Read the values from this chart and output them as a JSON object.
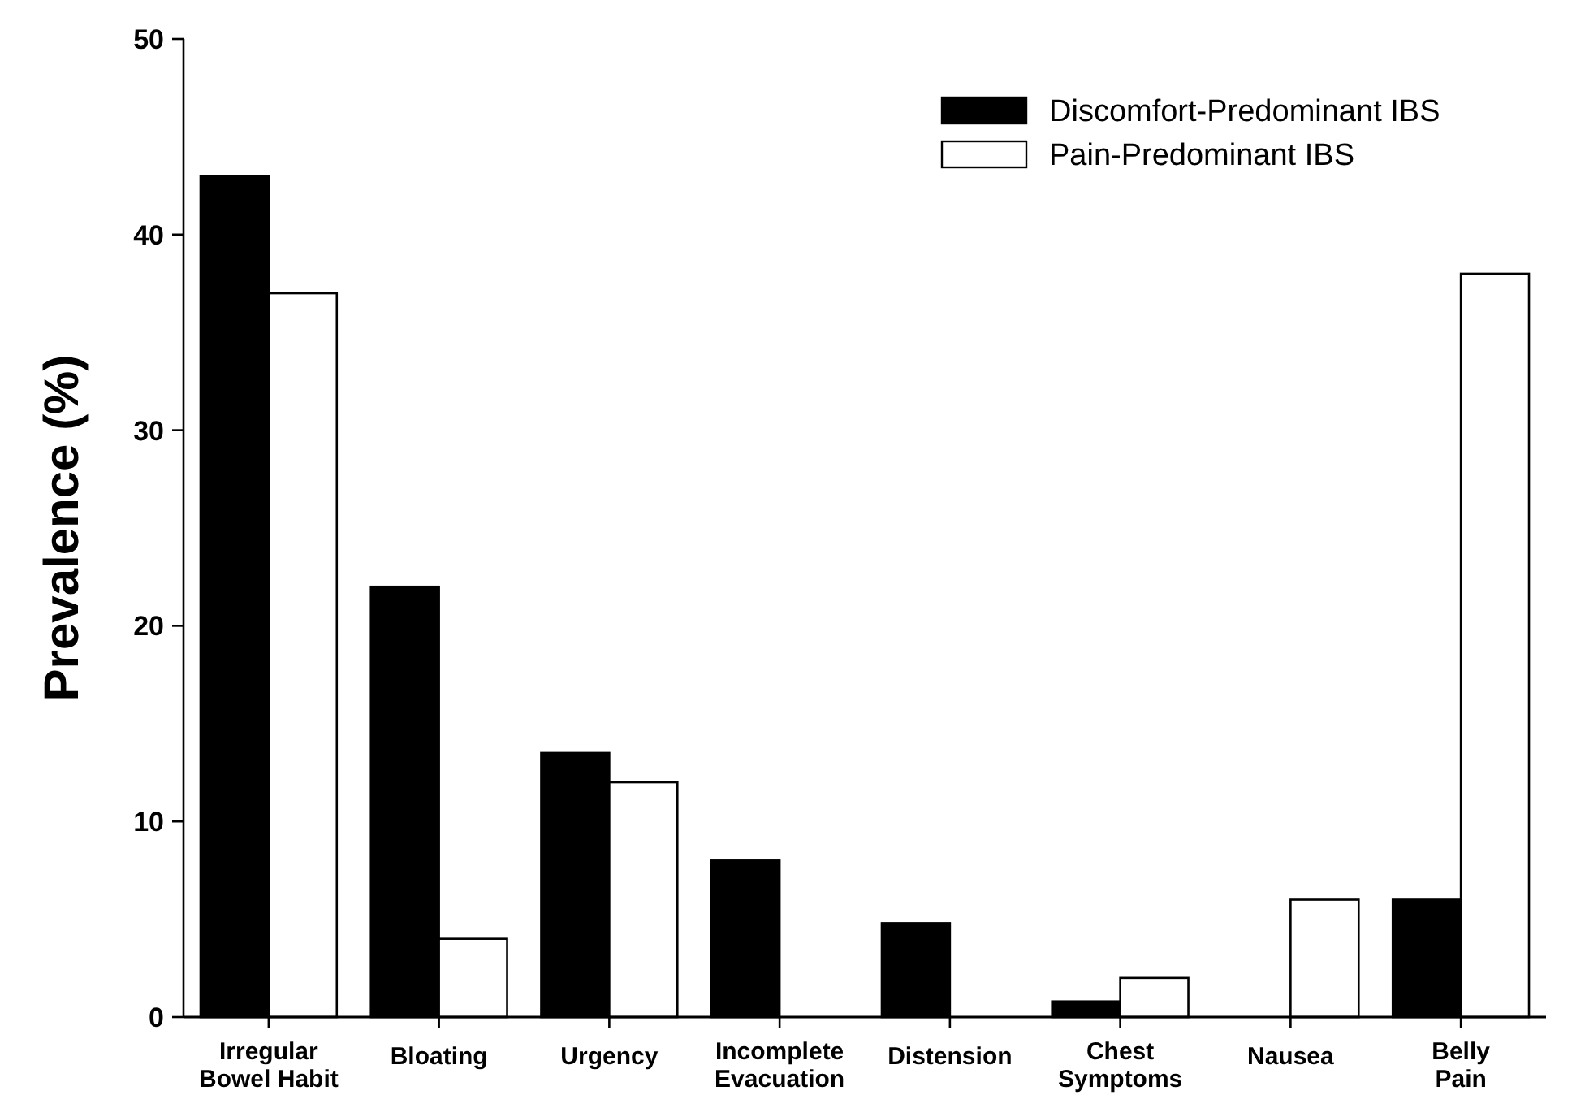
{
  "chart_data": {
    "type": "bar",
    "ylabel": "Prevalence (%)",
    "categories": [
      "Irregular\nBowel Habit",
      "Bloating",
      "Urgency",
      "Incomplete\nEvacuation",
      "Distension",
      "Chest\nSymptoms",
      "Nausea",
      "Belly\nPain"
    ],
    "series": [
      {
        "name": "Discomfort-Predominant IBS",
        "color": "#000000",
        "values": [
          43,
          22,
          13.5,
          8,
          4.8,
          0.8,
          0,
          6
        ]
      },
      {
        "name": "Pain-Predominant IBS",
        "color": "#ffffff",
        "values": [
          37,
          4,
          12,
          0,
          0,
          2,
          6,
          38
        ]
      }
    ],
    "ylim": [
      0,
      50
    ],
    "yticks": [
      0,
      10,
      20,
      30,
      40,
      50
    ],
    "grid": false,
    "legend": "top right"
  }
}
